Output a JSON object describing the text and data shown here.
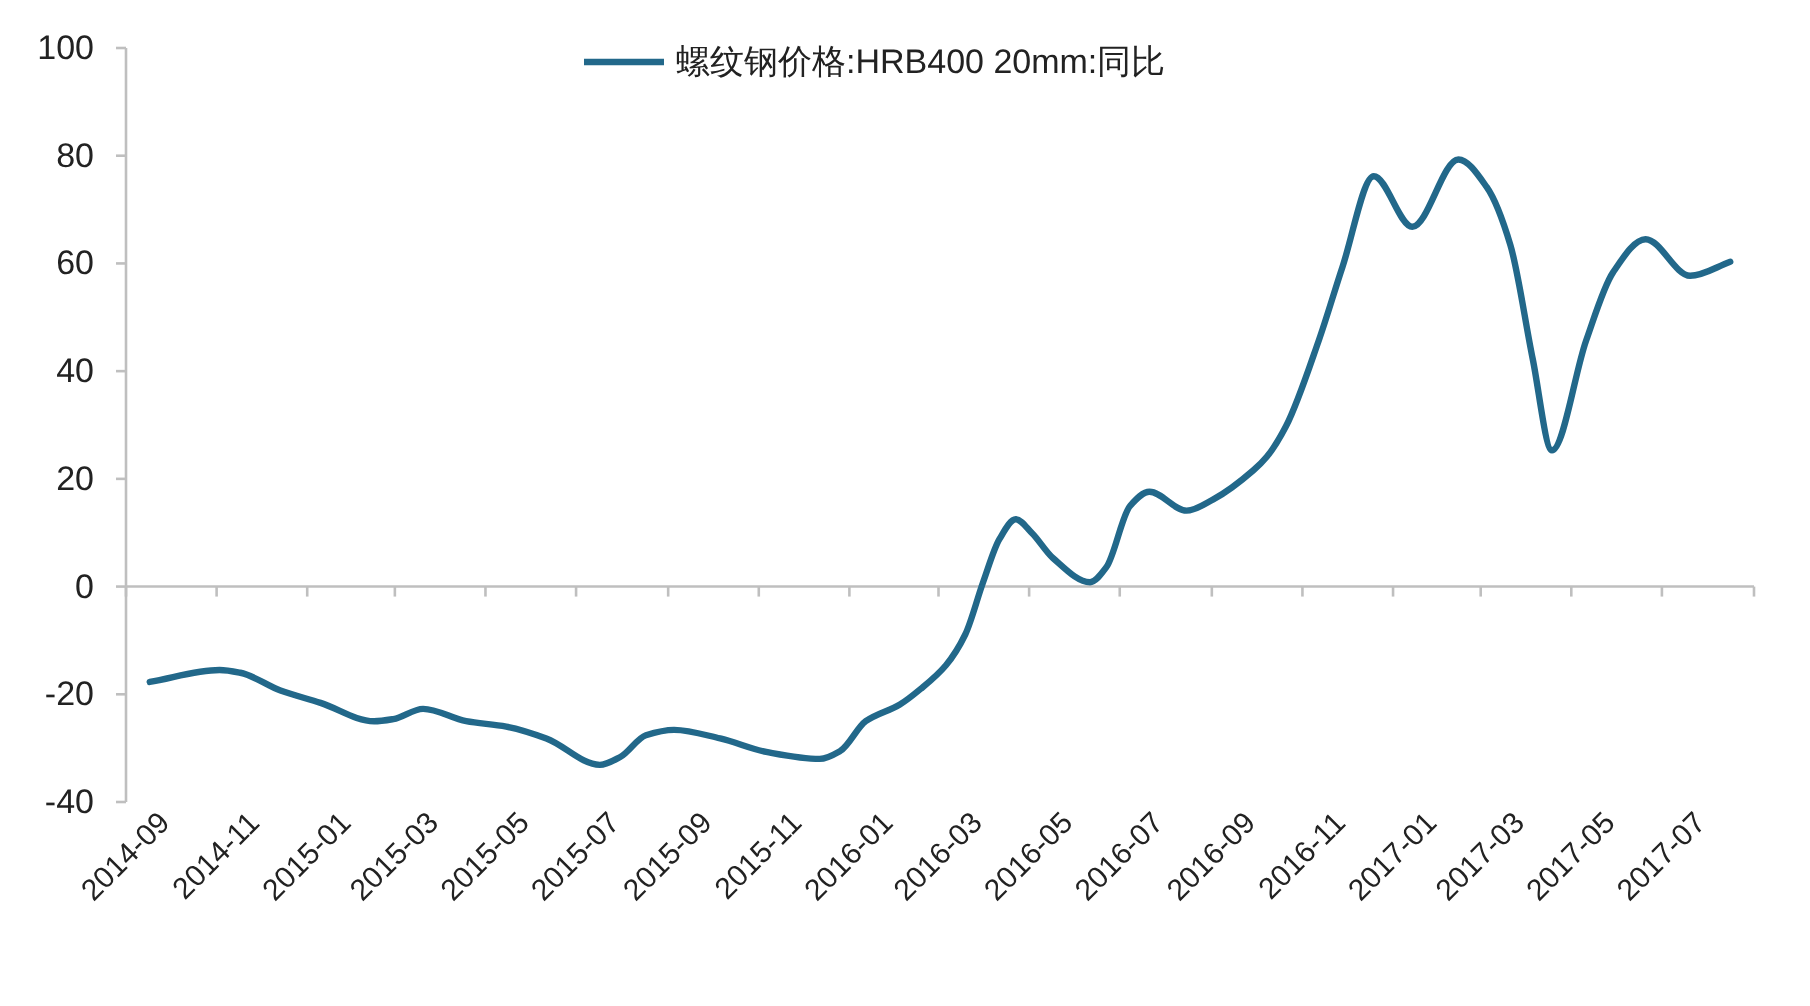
{
  "chart_data": {
    "type": "line",
    "legend": "top",
    "x": [
      "2014-09-17",
      "2014-11-03",
      "2014-11-17",
      "2014-12-14",
      "2015-01-10",
      "2015-02-15",
      "2015-02-28",
      "2015-03-20",
      "2015-04-18",
      "2015-05-15",
      "2015-06-11",
      "2015-07-17",
      "2015-07-31",
      "2015-08-17",
      "2015-09-05",
      "2015-10-06",
      "2015-11-06",
      "2015-12-12",
      "2015-12-26",
      "2016-01-12",
      "2016-02-04",
      "2016-02-18",
      "2016-03-06",
      "2016-03-19",
      "2016-03-31",
      "2016-04-11",
      "2016-04-22",
      "2016-05-03",
      "2016-05-17",
      "2016-06-11",
      "2016-06-22",
      "2016-07-08",
      "2016-07-21",
      "2016-08-15",
      "2016-09-02",
      "2016-09-29",
      "2016-10-08",
      "2016-10-21",
      "2016-11-12",
      "2016-11-28",
      "2016-12-19",
      "2017-01-14",
      "2017-02-14",
      "2017-03-05",
      "2017-03-21",
      "2017-04-05",
      "2017-04-18",
      "2017-05-11",
      "2017-05-29",
      "2017-06-20",
      "2017-07-20",
      "2017-08-16"
    ],
    "series": [
      {
        "name": "螺纹钢价格:HRB400 20mm:同比",
        "color": "#22688a",
        "values": [
          -17.7,
          -15.5,
          -16,
          -19.3,
          -21.6,
          -25,
          -24.6,
          -22.7,
          -25,
          -26,
          -28.2,
          -33.1,
          -31.6,
          -27.6,
          -26.6,
          -28.2,
          -30.7,
          -32,
          -30.5,
          -25,
          -21.9,
          -19,
          -14.6,
          -8.9,
          0.8,
          8.8,
          12.5,
          9.9,
          5.3,
          0.8,
          3.6,
          15,
          17.6,
          14.1,
          16.2,
          21.6,
          24.1,
          29.8,
          45.7,
          59.4,
          76.2,
          66.8,
          79.3,
          74.2,
          63.4,
          42.3,
          25.3,
          45.7,
          58.3,
          64.5,
          57.7,
          60.3
        ]
      }
    ],
    "xlim": [
      "2014-09-01",
      "2017-09-01"
    ],
    "xticks": [
      {
        "value": "2014-09",
        "label": "2014-09"
      },
      {
        "value": "2014-11",
        "label": "2014-11"
      },
      {
        "value": "2015-01",
        "label": "2015-01"
      },
      {
        "value": "2015-03",
        "label": "2015-03"
      },
      {
        "value": "2015-05",
        "label": "2015-05"
      },
      {
        "value": "2015-07",
        "label": "2015-07"
      },
      {
        "value": "2015-09",
        "label": "2015-09"
      },
      {
        "value": "2015-11",
        "label": "2015-11"
      },
      {
        "value": "2016-01",
        "label": "2016-01"
      },
      {
        "value": "2016-03",
        "label": "2016-03"
      },
      {
        "value": "2016-05",
        "label": "2016-05"
      },
      {
        "value": "2016-07",
        "label": "2016-07"
      },
      {
        "value": "2016-09",
        "label": "2016-09"
      },
      {
        "value": "2016-11",
        "label": "2016-11"
      },
      {
        "value": "2017-01",
        "label": "2017-01"
      },
      {
        "value": "2017-03",
        "label": "2017-03"
      },
      {
        "value": "2017-05",
        "label": "2017-05"
      },
      {
        "value": "2017-07",
        "label": "2017-07"
      },
      {
        "value": "2017-09",
        "label": null
      }
    ],
    "ylim": [
      -40,
      100
    ],
    "yticks": [
      -40,
      -20,
      0,
      20,
      40,
      60,
      80,
      100
    ]
  }
}
